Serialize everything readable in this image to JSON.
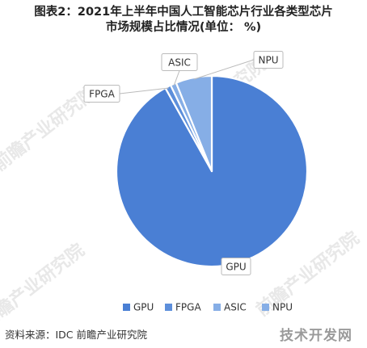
{
  "title_line1": "图表2：2021年上半年中国人工智能芯片行业各类型芯片",
  "title_line2": "市场规模占比情况(单位：  %)",
  "source": "资料来源：IDC 前瞻产业研究院",
  "watermark_text": "前瞻产业研究院",
  "corner_mark": "技术开发网",
  "colors": {
    "label_border": "#bbbbbb",
    "leader_line": "#bbbbbb",
    "watermark": "#e8e8e8"
  },
  "chart_data": {
    "type": "pie",
    "title": "2021年上半年中国人工智能芯片行业各类型芯片市场规模占比情况(单位：  %)",
    "slices": [
      {
        "label": "GPU",
        "value": 91.9,
        "color": "#4a7fd4"
      },
      {
        "label": "FPGA",
        "value": 1.0,
        "color": "#5d8fdb"
      },
      {
        "label": "ASIC",
        "value": 1.0,
        "color": "#86aee6"
      },
      {
        "label": "NPU",
        "value": 6.1,
        "color": "#86aee6"
      }
    ],
    "legend": [
      "GPU",
      "FPGA",
      "ASIC",
      "NPU"
    ],
    "legend_placement": "bottom",
    "data_labels": "category"
  }
}
